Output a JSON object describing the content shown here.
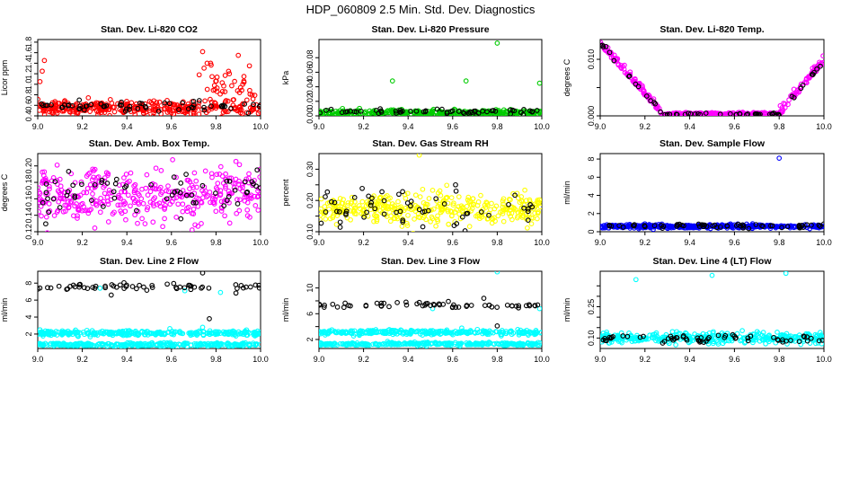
{
  "page": {
    "main_title": "HDP_060809  2.5 Min. Std. Dev. Diagnostics"
  },
  "colors": {
    "axis": "#000000",
    "black": "#000000",
    "red": "#ff0000",
    "green": "#00cc00",
    "magenta": "#ff00ff",
    "yellow": "#ffff00",
    "blue": "#0000ff",
    "cyan": "#00ffff"
  },
  "chart_data": [
    {
      "id": "co2",
      "type": "scatter",
      "title": "Stan. Dev. Li-820 CO2",
      "xlabel": "",
      "ylabel": "Licor ppm",
      "xlim": [
        9.0,
        10.0
      ],
      "ylim": [
        0.4,
        1.85
      ],
      "xticks": [
        9.0,
        9.2,
        9.4,
        9.6,
        9.8,
        10.0
      ],
      "xtick_labels": [
        "9.0",
        "9.2",
        "9.4",
        "9.6",
        "9.8",
        "10.0"
      ],
      "yticks": [
        0.4,
        0.6,
        0.8,
        1.0,
        1.2,
        1.4,
        1.6,
        1.8
      ],
      "ytick_labels": [
        "0.4",
        "0.6",
        "0.8",
        "1.0",
        "1.2",
        "1.4",
        "1.6",
        "1.8"
      ],
      "series": [
        {
          "name": "primary",
          "color": "red",
          "n": 380,
          "mean": 0.55,
          "spread": 0.06,
          "outliers": [
            [
              9.01,
              1.05
            ],
            [
              9.02,
              1.25
            ],
            [
              9.03,
              1.45
            ],
            [
              9.74,
              1.62
            ],
            [
              9.76,
              1.4
            ],
            [
              9.9,
              1.55
            ],
            [
              9.95,
              1.35
            ],
            [
              9.99,
              0.45
            ],
            [
              9.86,
              1.2
            ],
            [
              9.92,
              1.0
            ]
          ],
          "late_start": 9.72,
          "late_mean": 0.85,
          "late_spread": 0.22
        },
        {
          "name": "black",
          "color": "black",
          "n": 60,
          "mean": 0.58,
          "spread": 0.05
        }
      ]
    },
    {
      "id": "pressure",
      "type": "scatter",
      "title": "Stan. Dev. Li-820 Pressure",
      "xlabel": "",
      "ylabel": "kPa",
      "xlim": [
        9.0,
        10.0
      ],
      "ylim": [
        0.0,
        0.105
      ],
      "xticks": [
        9.0,
        9.2,
        9.4,
        9.6,
        9.8,
        10.0
      ],
      "xtick_labels": [
        "9.0",
        "9.2",
        "9.4",
        "9.6",
        "9.8",
        "10.0"
      ],
      "yticks": [
        0.0,
        0.02,
        0.04,
        0.06,
        0.08
      ],
      "ytick_labels": [
        "0.00",
        "0.02",
        "0.04",
        "0.06",
        "0.08"
      ],
      "series": [
        {
          "name": "primary",
          "color": "green",
          "n": 380,
          "mean": 0.004,
          "spread": 0.002,
          "outliers": [
            [
              9.33,
              0.048
            ],
            [
              9.66,
              0.048
            ],
            [
              9.8,
              0.1
            ],
            [
              9.99,
              0.045
            ]
          ]
        },
        {
          "name": "black",
          "color": "black",
          "n": 60,
          "mean": 0.006,
          "spread": 0.002
        }
      ]
    },
    {
      "id": "temp",
      "type": "scatter",
      "title": "Stan. Dev. Li-820 Temp.",
      "xlabel": "",
      "ylabel": "degrees C",
      "xlim": [
        9.0,
        10.0
      ],
      "ylim": [
        0.0,
        0.0135
      ],
      "xticks": [
        9.0,
        9.2,
        9.4,
        9.6,
        9.8,
        10.0
      ],
      "xtick_labels": [
        "9.0",
        "9.2",
        "9.4",
        "9.6",
        "9.8",
        "10.0"
      ],
      "yticks": [
        0.0,
        0.005,
        0.01
      ],
      "ytick_labels": [
        "0.000",
        "",
        "0.010"
      ],
      "series": [
        {
          "name": "primary",
          "color": "magenta",
          "n": 380,
          "shape": "valley",
          "spread": 0.0006
        },
        {
          "name": "black",
          "color": "black",
          "n": 60,
          "shape": "valley",
          "spread": 0.0004
        }
      ]
    },
    {
      "id": "ambbox",
      "type": "scatter",
      "title": "Stan. Dev. Amb. Box Temp.",
      "xlabel": "",
      "ylabel": "degrees C",
      "xlim": [
        9.0,
        10.0
      ],
      "ylim": [
        0.12,
        0.215
      ],
      "xticks": [
        9.0,
        9.2,
        9.4,
        9.6,
        9.8,
        10.0
      ],
      "xtick_labels": [
        "9.0",
        "9.2",
        "9.4",
        "9.6",
        "9.8",
        "10.0"
      ],
      "yticks": [
        0.12,
        0.14,
        0.16,
        0.18,
        0.2
      ],
      "ytick_labels": [
        "0.12",
        "0.14",
        "0.16",
        "0.18",
        "0.20"
      ],
      "series": [
        {
          "name": "primary",
          "color": "magenta",
          "n": 380,
          "mean": 0.164,
          "spread": 0.016
        },
        {
          "name": "black",
          "color": "black",
          "n": 60,
          "mean": 0.166,
          "spread": 0.015
        }
      ]
    },
    {
      "id": "rh",
      "type": "scatter",
      "title": "Stan. Dev. Gas Stream RH",
      "xlabel": "",
      "ylabel": "percent",
      "xlim": [
        9.0,
        10.0
      ],
      "ylim": [
        0.1,
        0.35
      ],
      "xticks": [
        9.0,
        9.2,
        9.4,
        9.6,
        9.8,
        10.0
      ],
      "xtick_labels": [
        "9.0",
        "9.2",
        "9.4",
        "9.6",
        "9.8",
        "10.0"
      ],
      "yticks": [
        0.1,
        0.15,
        0.2,
        0.25,
        0.3
      ],
      "ytick_labels": [
        "0.10",
        "",
        "0.20",
        "",
        "0.30"
      ],
      "series": [
        {
          "name": "primary",
          "color": "yellow",
          "n": 380,
          "mean": 0.17,
          "spread": 0.025,
          "outliers": [
            [
              9.45,
              0.345
            ]
          ]
        },
        {
          "name": "black",
          "color": "black",
          "n": 60,
          "mean": 0.175,
          "spread": 0.03
        }
      ]
    },
    {
      "id": "sampleflow",
      "type": "scatter",
      "title": "Stan. Dev. Sample Flow",
      "xlabel": "",
      "ylabel": "ml/min",
      "xlim": [
        9.0,
        10.0
      ],
      "ylim": [
        0.0,
        8.6
      ],
      "xticks": [
        9.0,
        9.2,
        9.4,
        9.6,
        9.8,
        10.0
      ],
      "xtick_labels": [
        "9.0",
        "9.2",
        "9.4",
        "9.6",
        "9.8",
        "10.0"
      ],
      "yticks": [
        0,
        2,
        4,
        6,
        8
      ],
      "ytick_labels": [
        "0",
        "2",
        "4",
        "6",
        "8"
      ],
      "series": [
        {
          "name": "primary",
          "color": "blue",
          "n": 380,
          "mean": 0.6,
          "spread": 0.1,
          "outliers": [
            [
              9.8,
              8.1
            ]
          ]
        },
        {
          "name": "black",
          "color": "black",
          "n": 60,
          "mean": 0.65,
          "spread": 0.1
        }
      ]
    },
    {
      "id": "line2",
      "type": "scatter",
      "title": "Stan. Dev. Line 2 Flow",
      "xlabel": "",
      "ylabel": "ml/min",
      "xlim": [
        9.0,
        10.0
      ],
      "ylim": [
        0.3,
        9.4
      ],
      "xticks": [
        9.0,
        9.2,
        9.4,
        9.6,
        9.8,
        10.0
      ],
      "xtick_labels": [
        "9.0",
        "9.2",
        "9.4",
        "9.6",
        "9.8",
        "10.0"
      ],
      "yticks": [
        2,
        4,
        6,
        8
      ],
      "ytick_labels": [
        "2",
        "4",
        "6",
        "8"
      ],
      "series": [
        {
          "name": "cyan-upper",
          "color": "cyan",
          "n": 300,
          "mean": 2.1,
          "spread": 0.15
        },
        {
          "name": "cyan-lower",
          "color": "cyan",
          "n": 300,
          "mean": 0.75,
          "spread": 0.1,
          "outliers": [
            [
              9.01,
              2.5
            ],
            [
              9.28,
              7.4
            ],
            [
              9.66,
              7.1
            ],
            [
              9.82,
              6.9
            ],
            [
              9.74,
              2.8
            ]
          ]
        },
        {
          "name": "black",
          "color": "black",
          "n": 60,
          "mean": 7.6,
          "spread": 0.25,
          "outliers": [
            [
              9.33,
              6.6
            ],
            [
              9.77,
              3.8
            ],
            [
              9.74,
              9.2
            ]
          ]
        }
      ]
    },
    {
      "id": "line3",
      "type": "scatter",
      "title": "Stan. Dev. Line 3 Flow",
      "xlabel": "",
      "ylabel": "ml/min",
      "xlim": [
        9.0,
        10.0
      ],
      "ylim": [
        0.6,
        12.6
      ],
      "xticks": [
        9.0,
        9.2,
        9.4,
        9.6,
        9.8,
        10.0
      ],
      "xtick_labels": [
        "9.0",
        "9.2",
        "9.4",
        "9.6",
        "9.8",
        "10.0"
      ],
      "yticks": [
        2,
        4,
        6,
        8,
        10
      ],
      "ytick_labels": [
        "2",
        "",
        "6",
        "",
        "10"
      ],
      "series": [
        {
          "name": "cyan-upper",
          "color": "cyan",
          "n": 300,
          "mean": 3.1,
          "spread": 0.18
        },
        {
          "name": "cyan-lower",
          "color": "cyan",
          "n": 300,
          "mean": 1.3,
          "spread": 0.12,
          "outliers": [
            [
              9.8,
              12.5
            ],
            [
              9.99,
              6.8
            ],
            [
              9.51,
              6.8
            ]
          ]
        },
        {
          "name": "black",
          "color": "black",
          "n": 60,
          "mean": 7.3,
          "spread": 0.25,
          "outliers": [
            [
              9.8,
              4.1
            ],
            [
              9.74,
              8.4
            ]
          ]
        }
      ]
    },
    {
      "id": "line4",
      "type": "scatter",
      "title": "Stan. Dev. Line 4 (LT) Flow",
      "xlabel": "",
      "ylabel": "ml/min",
      "xlim": [
        9.0,
        10.0
      ],
      "ylim": [
        0.05,
        0.42
      ],
      "xticks": [
        9.0,
        9.2,
        9.4,
        9.6,
        9.8,
        10.0
      ],
      "xtick_labels": [
        "9.0",
        "9.2",
        "9.4",
        "9.6",
        "9.8",
        "10.0"
      ],
      "yticks": [
        0.1,
        0.15,
        0.2,
        0.25,
        0.3,
        0.35
      ],
      "ytick_labels": [
        "0.10",
        "",
        "",
        "0.25",
        "",
        ""
      ],
      "series": [
        {
          "name": "primary",
          "color": "cyan",
          "n": 380,
          "mean": 0.1,
          "spread": 0.012,
          "outliers": [
            [
              9.16,
              0.38
            ],
            [
              9.5,
              0.4
            ],
            [
              9.83,
              0.41
            ]
          ]
        },
        {
          "name": "black",
          "color": "black",
          "n": 60,
          "mean": 0.098,
          "spread": 0.01
        }
      ]
    }
  ]
}
